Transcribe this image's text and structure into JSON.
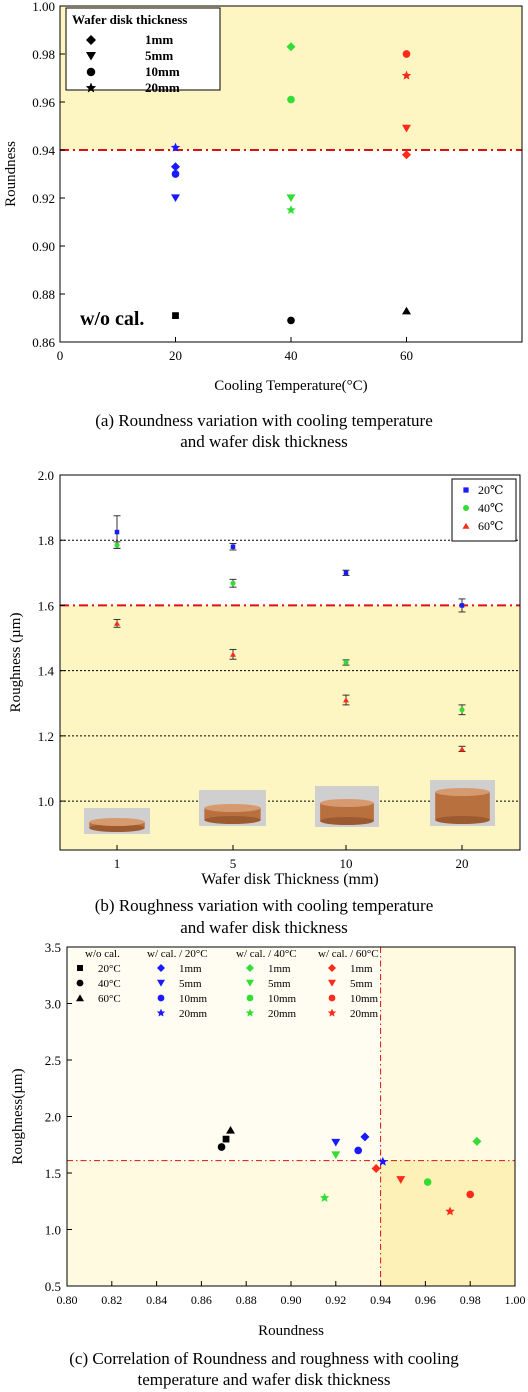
{
  "chart_data": [
    {
      "type": "scatter",
      "panel": "a",
      "caption_line1": "(a) Roundness variation with cooling temperature",
      "caption_line2": "and wafer disk thickness",
      "xlabel": "Cooling Temperature(°C)",
      "ylabel": "Roundness",
      "xlim": [
        0,
        80
      ],
      "ylim": [
        0.86,
        1.0
      ],
      "xticks": [
        "0",
        "20",
        "40",
        "60"
      ],
      "xtick_values": [
        0,
        20,
        40,
        60
      ],
      "yticks": [
        "0.86",
        "0.88",
        "0.90",
        "0.92",
        "0.94",
        "0.96",
        "0.98",
        "1.00"
      ],
      "ytick_values": [
        0.86,
        0.88,
        0.9,
        0.92,
        0.94,
        0.96,
        0.98,
        1.0
      ],
      "shade_above": 0.94,
      "ref_line_y": 0.94,
      "legend_title": "Wafer disk thickness",
      "legend": [
        {
          "label": "1mm",
          "marker": "diamond"
        },
        {
          "label": "5mm",
          "marker": "triangle-down"
        },
        {
          "label": "10mm",
          "marker": "circle"
        },
        {
          "label": "20mm",
          "marker": "star"
        }
      ],
      "annotation": "w/o cal.",
      "points": [
        {
          "x": 20,
          "y": 0.933,
          "marker": "diamond",
          "color": "#1a1aff"
        },
        {
          "x": 20,
          "y": 0.92,
          "marker": "triangle-down",
          "color": "#1a1aff"
        },
        {
          "x": 20,
          "y": 0.93,
          "marker": "circle",
          "color": "#1a1aff"
        },
        {
          "x": 20,
          "y": 0.941,
          "marker": "star",
          "color": "#1a1aff"
        },
        {
          "x": 40,
          "y": 0.983,
          "marker": "diamond",
          "color": "#33dd33"
        },
        {
          "x": 40,
          "y": 0.92,
          "marker": "triangle-down",
          "color": "#33dd33"
        },
        {
          "x": 40,
          "y": 0.961,
          "marker": "circle",
          "color": "#33dd33"
        },
        {
          "x": 40,
          "y": 0.915,
          "marker": "star",
          "color": "#33dd33"
        },
        {
          "x": 60,
          "y": 0.938,
          "marker": "diamond",
          "color": "#ff2a1a"
        },
        {
          "x": 60,
          "y": 0.949,
          "marker": "triangle-down",
          "color": "#ff2a1a"
        },
        {
          "x": 60,
          "y": 0.98,
          "marker": "circle",
          "color": "#ff2a1a"
        },
        {
          "x": 60,
          "y": 0.971,
          "marker": "star",
          "color": "#ff2a1a"
        },
        {
          "x": 20,
          "y": 0.871,
          "marker": "square",
          "color": "#000000"
        },
        {
          "x": 40,
          "y": 0.869,
          "marker": "circle",
          "color": "#000000"
        },
        {
          "x": 60,
          "y": 0.873,
          "marker": "triangle-up",
          "color": "#000000"
        }
      ]
    },
    {
      "type": "scatter",
      "panel": "b",
      "caption_line1": "(b) Roughness variation with cooling temperature",
      "caption_line2": "and wafer disk thickness",
      "xlabel": "Wafer disk Thickness (mm)",
      "ylabel": "Roughness (µm)",
      "categories": [
        "1",
        "5",
        "10",
        "20"
      ],
      "ylim": [
        0.85,
        2.0
      ],
      "yticks": [
        "1.0",
        "1.2",
        "1.4",
        "1.6",
        "1.8",
        "2.0"
      ],
      "ytick_values": [
        1.0,
        1.2,
        1.4,
        1.6,
        1.8,
        2.0
      ],
      "shade_below": 1.6,
      "ref_line_y": 1.6,
      "grid_dotted": [
        1.0,
        1.2,
        1.4,
        1.8
      ],
      "series": [
        {
          "name": "20℃",
          "marker": "square",
          "color": "#1a1aff",
          "values": [
            1.825,
            1.78,
            1.7,
            1.6
          ],
          "errors": [
            0.05,
            0.01,
            0.008,
            0.02
          ]
        },
        {
          "name": "40℃",
          "marker": "circle",
          "color": "#33dd33",
          "values": [
            1.785,
            1.668,
            1.425,
            1.28
          ],
          "errors": [
            0.01,
            0.012,
            0.008,
            0.015
          ]
        },
        {
          "name": "60℃",
          "marker": "triangle-up",
          "color": "#ff2a1a",
          "values": [
            1.545,
            1.45,
            1.31,
            1.16
          ],
          "errors": [
            0.012,
            0.015,
            0.015,
            0.008
          ]
        }
      ],
      "images": [
        "thin disk photo",
        "5mm disk photo",
        "10mm disk photo",
        "20mm disk photo"
      ]
    },
    {
      "type": "scatter",
      "panel": "c",
      "caption_line1": "(c) Correlation of Roundness and roughness with cooling",
      "caption_line2": "temperature and wafer disk thickness",
      "xlabel": "Roundness",
      "ylabel": "Roughness(µm)",
      "xlim": [
        0.8,
        1.0
      ],
      "ylim": [
        0.5,
        3.5
      ],
      "xticks": [
        "0.80",
        "0.82",
        "0.84",
        "0.86",
        "0.88",
        "0.90",
        "0.92",
        "0.94",
        "0.96",
        "0.98",
        "1.00"
      ],
      "xtick_values": [
        0.8,
        0.82,
        0.84,
        0.86,
        0.88,
        0.9,
        0.92,
        0.94,
        0.96,
        0.98,
        1.0
      ],
      "yticks": [
        "0.5",
        "1.0",
        "1.5",
        "2.0",
        "2.5",
        "3.0",
        "3.5"
      ],
      "ytick_values": [
        0.5,
        1.0,
        1.5,
        2.0,
        2.5,
        3.0,
        3.5
      ],
      "ref_x": 0.94,
      "ref_y": 1.61,
      "legend_groups": [
        {
          "title": "w/o cal.",
          "items": [
            {
              "label": "20°C",
              "marker": "square",
              "color": "#000000"
            },
            {
              "label": "40°C",
              "marker": "circle",
              "color": "#000000"
            },
            {
              "label": "60°C",
              "marker": "triangle-up",
              "color": "#000000"
            }
          ]
        },
        {
          "title": "w/ cal. / 20°C",
          "items": [
            {
              "label": "1mm",
              "marker": "diamond",
              "color": "#1a1aff"
            },
            {
              "label": "5mm",
              "marker": "triangle-down",
              "color": "#1a1aff"
            },
            {
              "label": "10mm",
              "marker": "circle",
              "color": "#1a1aff"
            },
            {
              "label": "20mm",
              "marker": "star",
              "color": "#1a1aff"
            }
          ]
        },
        {
          "title": "w/ cal. / 40°C",
          "items": [
            {
              "label": "1mm",
              "marker": "diamond",
              "color": "#33dd33"
            },
            {
              "label": "5mm",
              "marker": "triangle-down",
              "color": "#33dd33"
            },
            {
              "label": "10mm",
              "marker": "circle",
              "color": "#33dd33"
            },
            {
              "label": "20mm",
              "marker": "star",
              "color": "#33dd33"
            }
          ]
        },
        {
          "title": "w/ cal. / 60°C",
          "items": [
            {
              "label": "1mm",
              "marker": "diamond",
              "color": "#ff2a1a"
            },
            {
              "label": "5mm",
              "marker": "triangle-down",
              "color": "#ff2a1a"
            },
            {
              "label": "10mm",
              "marker": "circle",
              "color": "#ff2a1a"
            },
            {
              "label": "20mm",
              "marker": "star",
              "color": "#ff2a1a"
            }
          ]
        }
      ],
      "points": [
        {
          "x": 0.871,
          "y": 1.8,
          "marker": "square",
          "color": "#000000"
        },
        {
          "x": 0.869,
          "y": 1.73,
          "marker": "circle",
          "color": "#000000"
        },
        {
          "x": 0.873,
          "y": 1.88,
          "marker": "triangle-up",
          "color": "#000000"
        },
        {
          "x": 0.933,
          "y": 1.82,
          "marker": "diamond",
          "color": "#1a1aff"
        },
        {
          "x": 0.92,
          "y": 1.77,
          "marker": "triangle-down",
          "color": "#1a1aff"
        },
        {
          "x": 0.93,
          "y": 1.7,
          "marker": "circle",
          "color": "#1a1aff"
        },
        {
          "x": 0.941,
          "y": 1.6,
          "marker": "star",
          "color": "#1a1aff"
        },
        {
          "x": 0.983,
          "y": 1.78,
          "marker": "diamond",
          "color": "#33dd33"
        },
        {
          "x": 0.92,
          "y": 1.66,
          "marker": "triangle-down",
          "color": "#33dd33"
        },
        {
          "x": 0.961,
          "y": 1.42,
          "marker": "circle",
          "color": "#33dd33"
        },
        {
          "x": 0.915,
          "y": 1.28,
          "marker": "star",
          "color": "#33dd33"
        },
        {
          "x": 0.938,
          "y": 1.54,
          "marker": "diamond",
          "color": "#ff2a1a"
        },
        {
          "x": 0.949,
          "y": 1.44,
          "marker": "triangle-down",
          "color": "#ff2a1a"
        },
        {
          "x": 0.98,
          "y": 1.31,
          "marker": "circle",
          "color": "#ff2a1a"
        },
        {
          "x": 0.971,
          "y": 1.16,
          "marker": "star",
          "color": "#ff2a1a"
        }
      ]
    }
  ]
}
